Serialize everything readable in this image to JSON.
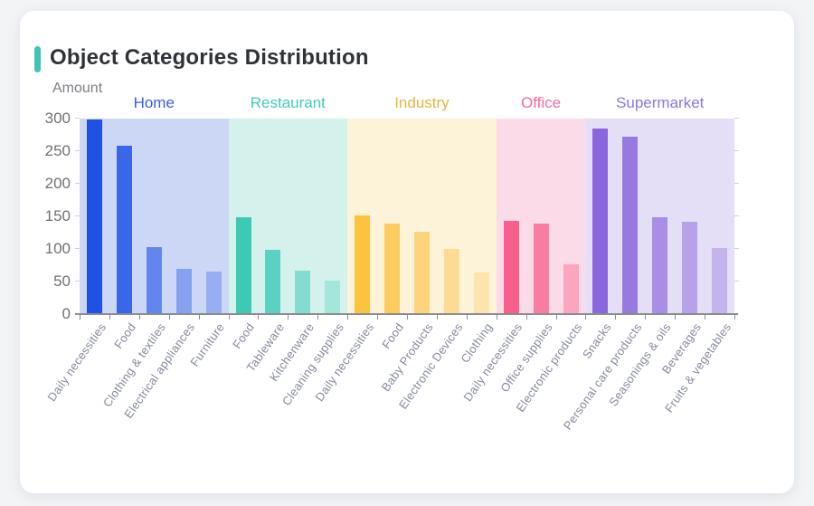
{
  "page": {
    "background": "#f2f4f6"
  },
  "card": {
    "title": "Object Categories Distribution",
    "accent_color": "#3ec3b5"
  },
  "chart_data": {
    "type": "bar",
    "title": "Object Categories Distribution",
    "ylabel": "Amount",
    "xlabel": "",
    "ylim": [
      0,
      300
    ],
    "yticks": [
      0,
      50,
      100,
      150,
      200,
      250,
      300
    ],
    "grid": false,
    "legend_position": "none",
    "axis_label_rotation": 55,
    "groups": [
      {
        "name": "Home",
        "label_color": "#3b5be8",
        "band_color": "#ccd7f6",
        "bars": [
          {
            "label": "Daily necessities",
            "value": 298,
            "color": "#1f51e3"
          },
          {
            "label": "Food",
            "value": 258,
            "color": "#3a67e9"
          },
          {
            "label": "Clothing & textiles",
            "value": 103,
            "color": "#6386ee"
          },
          {
            "label": "Electrical appliances",
            "value": 70,
            "color": "#87a1f1"
          },
          {
            "label": "Furniture",
            "value": 65,
            "color": "#98aef3"
          }
        ]
      },
      {
        "name": "Restaurant",
        "label_color": "#41cbb8",
        "band_color": "#d5f1ec",
        "bars": [
          {
            "label": "Food",
            "value": 149,
            "color": "#3ec9b5"
          },
          {
            "label": "Tableware",
            "value": 98,
            "color": "#5bd2c1"
          },
          {
            "label": "Kitchenware",
            "value": 66,
            "color": "#83dcce"
          },
          {
            "label": "Cleaning supplies",
            "value": 52,
            "color": "#a5e6da"
          }
        ]
      },
      {
        "name": "Industry",
        "label_color": "#e9b43f",
        "band_color": "#fdf3d9",
        "bars": [
          {
            "label": "Daily necessities",
            "value": 151,
            "color": "#fcc33f"
          },
          {
            "label": "Food",
            "value": 139,
            "color": "#fccc5e"
          },
          {
            "label": "Baby Products",
            "value": 127,
            "color": "#fdd47b"
          },
          {
            "label": "Electronic Devices",
            "value": 100,
            "color": "#fddb95"
          },
          {
            "label": "Clothing",
            "value": 64,
            "color": "#fde3ac"
          }
        ]
      },
      {
        "name": "Office",
        "label_color": "#f8689a",
        "band_color": "#fcdbe8",
        "bars": [
          {
            "label": "Daily necessities",
            "value": 143,
            "color": "#f85f8c"
          },
          {
            "label": "Office supplies",
            "value": 139,
            "color": "#f97da3"
          },
          {
            "label": "Electronic products",
            "value": 76,
            "color": "#fba5bf"
          }
        ]
      },
      {
        "name": "Supermarket",
        "label_color": "#8d74e4",
        "band_color": "#e5def7",
        "bars": [
          {
            "label": "Snacks",
            "value": 285,
            "color": "#8a67dc"
          },
          {
            "label": "Personal care products",
            "value": 272,
            "color": "#9879e1"
          },
          {
            "label": "Seasonings & oils",
            "value": 149,
            "color": "#a88ee6"
          },
          {
            "label": "Beverages",
            "value": 141,
            "color": "#b7a1ea"
          },
          {
            "label": "Fruits & vegetables",
            "value": 102,
            "color": "#c5b3ee"
          }
        ]
      }
    ]
  }
}
